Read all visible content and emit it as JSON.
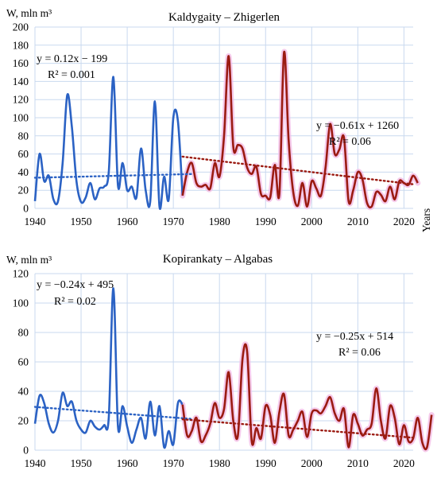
{
  "chart_data": [
    {
      "type": "line",
      "title": "Kaldygaity – Zhigerlen",
      "ylabel": "W, mln m³",
      "xlabel": "Years",
      "xlim": [
        1940,
        2022
      ],
      "ylim": [
        0,
        200
      ],
      "x_ticks": [
        1940,
        1950,
        1960,
        1970,
        1980,
        1990,
        2000,
        2010,
        2020
      ],
      "y_ticks": [
        0,
        20,
        40,
        60,
        80,
        100,
        120,
        140,
        160,
        180,
        200
      ],
      "grid": true,
      "colors": {
        "early": "#2b62c4",
        "late": "#9b1b12",
        "highlight": "#f2b8e4"
      },
      "split_year": 1972,
      "x_start": 1940,
      "values": [
        8,
        60,
        30,
        36,
        10,
        8,
        50,
        125,
        90,
        30,
        7,
        12,
        28,
        10,
        22,
        24,
        40,
        145,
        25,
        50,
        20,
        24,
        12,
        66,
        20,
        8,
        118,
        2,
        35,
        10,
        100,
        96,
        14,
        40,
        50,
        28,
        24,
        26,
        22,
        50,
        35,
        80,
        168,
        68,
        70,
        66,
        45,
        38,
        46,
        16,
        14,
        12,
        48,
        16,
        172,
        75,
        18,
        3,
        28,
        2,
        30,
        22,
        14,
        45,
        93,
        60,
        65,
        78,
        8,
        20,
        40,
        32,
        6,
        2,
        18,
        15,
        8,
        24,
        10,
        30,
        28,
        26,
        36,
        28
      ],
      "trendlines": [
        {
          "equation": "y = 0.12x − 199",
          "r2": "R² = 0.001",
          "x0": 1940,
          "x1": 1974,
          "slope": 0.12,
          "intercept": -199
        },
        {
          "equation": "y = −0.61x + 1260",
          "r2": "R² = 0.06",
          "x0": 1972,
          "x1": 2022,
          "slope": -0.61,
          "intercept": 1260
        }
      ]
    },
    {
      "type": "line",
      "title": "Kopirankaty – Algabas",
      "ylabel": "W, mln m³",
      "xlabel": "",
      "xlim": [
        1940,
        2022
      ],
      "ylim": [
        0,
        120
      ],
      "x_ticks": [
        1940,
        1950,
        1960,
        1970,
        1980,
        1990,
        2000,
        2010,
        2020
      ],
      "y_ticks": [
        0,
        20,
        40,
        60,
        80,
        100,
        120
      ],
      "grid": true,
      "colors": {
        "early": "#2b62c4",
        "late": "#9b1b12",
        "highlight": "#f2b8e4"
      },
      "split_year": 1972,
      "x_start": 1940,
      "values": [
        18,
        37,
        32,
        18,
        12,
        20,
        39,
        30,
        33,
        20,
        14,
        12,
        20,
        16,
        14,
        17,
        22,
        110,
        16,
        30,
        16,
        5,
        14,
        22,
        8,
        33,
        10,
        30,
        2,
        13,
        4,
        32,
        31,
        10,
        13,
        22,
        6,
        10,
        18,
        32,
        22,
        28,
        53,
        20,
        10,
        62,
        67,
        6,
        15,
        8,
        30,
        24,
        5,
        26,
        38,
        10,
        14,
        20,
        26,
        9,
        25,
        27,
        25,
        30,
        36,
        25,
        20,
        28,
        2,
        24,
        18,
        10,
        14,
        18,
        42,
        20,
        8,
        30,
        22,
        4,
        17,
        6,
        8,
        22,
        5,
        2,
        24
      ],
      "trendlines": [
        {
          "equation": "y = −0.24x + 495",
          "r2": "R² = 0.02",
          "x0": 1940,
          "x1": 1974,
          "slope": -0.24,
          "intercept": 495
        },
        {
          "equation": "y = −0.25x + 514",
          "r2": "R² = 0.06",
          "x0": 1972,
          "x1": 2022,
          "slope": -0.25,
          "intercept": 514
        }
      ]
    }
  ]
}
